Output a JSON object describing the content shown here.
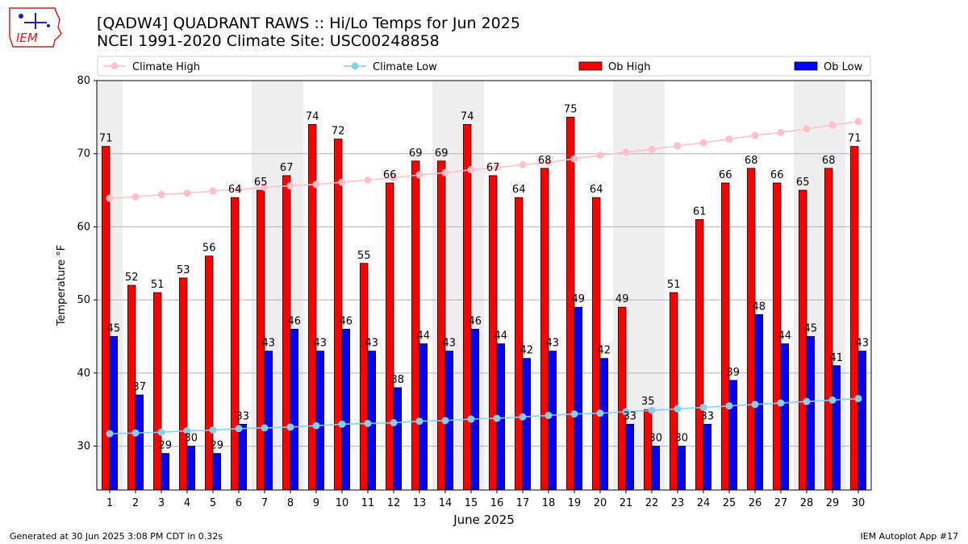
{
  "header": {
    "title_line1": "[QADW4] QUADRANT RAWS :: Hi/Lo Temps for Jun 2025",
    "title_line2": "NCEI 1991-2020 Climate Site: USC00248858",
    "logo_text": "IEM"
  },
  "footer": {
    "left": "Generated at 30 Jun 2025 3:08 PM CDT in 0.32s",
    "right": "IEM Autoplot App #17"
  },
  "colors": {
    "ob_high": "#ff0000",
    "ob_low": "#0000ff",
    "climate_high": "#ffc0cb",
    "climate_low": "#87ceeb",
    "weekend_band": "#eeeeee",
    "grid": "#b0b0b0"
  },
  "chart_data": {
    "type": "bar",
    "xlabel": "June 2025",
    "ylabel": "Temperature °F",
    "ylim": [
      24,
      80
    ],
    "yticks": [
      30,
      40,
      50,
      60,
      70,
      80
    ],
    "grid": "horizontal",
    "legend_position": "top",
    "categories": [
      "1",
      "2",
      "3",
      "4",
      "5",
      "6",
      "7",
      "8",
      "9",
      "10",
      "11",
      "12",
      "13",
      "14",
      "15",
      "16",
      "17",
      "18",
      "19",
      "20",
      "21",
      "22",
      "23",
      "24",
      "25",
      "26",
      "27",
      "28",
      "29",
      "30"
    ],
    "weekend_days": [
      1,
      7,
      8,
      14,
      15,
      21,
      22,
      28,
      29
    ],
    "series": [
      {
        "name": "Ob High",
        "kind": "bar",
        "values": [
          71,
          52,
          51,
          53,
          56,
          64,
          65,
          67,
          74,
          72,
          55,
          66,
          69,
          69,
          74,
          67,
          64,
          68,
          75,
          64,
          49,
          35,
          51,
          61,
          66,
          68,
          66,
          65,
          68,
          71
        ]
      },
      {
        "name": "Ob Low",
        "kind": "bar",
        "values": [
          45,
          37,
          29,
          30,
          29,
          33,
          43,
          46,
          43,
          46,
          43,
          38,
          44,
          43,
          46,
          44,
          42,
          43,
          49,
          42,
          33,
          30,
          30,
          33,
          39,
          48,
          44,
          45,
          41,
          43
        ]
      },
      {
        "name": "Climate High",
        "kind": "line",
        "values": [
          63.9,
          64.1,
          64.4,
          64.6,
          64.9,
          65.1,
          65.4,
          65.6,
          65.8,
          66.1,
          66.4,
          66.7,
          67.1,
          67.4,
          67.8,
          68.1,
          68.5,
          68.8,
          69.3,
          69.8,
          70.2,
          70.6,
          71.1,
          71.5,
          72.0,
          72.5,
          72.9,
          73.4,
          73.9,
          74.4
        ]
      },
      {
        "name": "Climate Low",
        "kind": "line",
        "values": [
          31.7,
          31.8,
          31.9,
          32.1,
          32.2,
          32.4,
          32.5,
          32.6,
          32.8,
          33.0,
          33.1,
          33.2,
          33.4,
          33.5,
          33.7,
          33.8,
          34.0,
          34.2,
          34.4,
          34.5,
          34.7,
          34.9,
          35.1,
          35.3,
          35.5,
          35.7,
          35.9,
          36.1,
          36.3,
          36.5
        ]
      }
    ]
  }
}
